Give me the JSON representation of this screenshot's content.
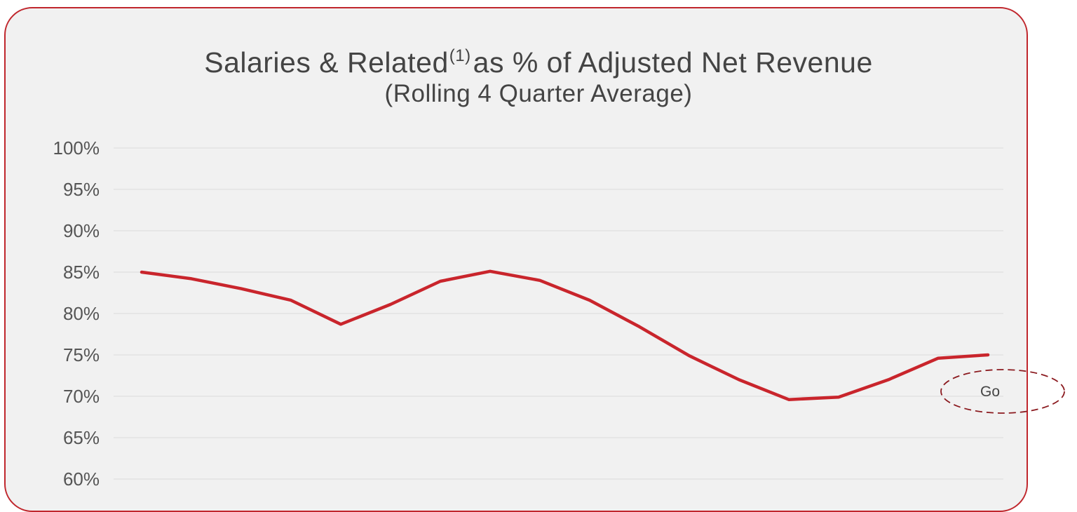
{
  "chart_data": {
    "type": "line",
    "title": "Salaries & Related",
    "title_footnote": "(1)",
    "title_suffix": "as % of Adjusted Net Revenue",
    "subtitle": "(Rolling 4 Quarter Average)",
    "ylabel": "",
    "xlabel": "",
    "ylim": [
      60,
      100
    ],
    "y_ticks": [
      "100%",
      "95%",
      "90%",
      "85%",
      "80%",
      "75%",
      "70%",
      "65%",
      "60%"
    ],
    "grid": true,
    "series": [
      {
        "values": [
          85.0,
          84.2,
          83.0,
          81.6,
          78.7,
          81.1,
          83.9,
          85.1,
          84.0,
          81.6,
          78.4,
          74.9,
          72.0,
          69.6,
          69.9,
          72.0,
          74.6,
          75.0
        ],
        "color": "#c9252c"
      }
    ],
    "annotation": {
      "text": "Go",
      "y_value": 70,
      "style": "dashed-ellipse",
      "color": "#8b1a1f"
    }
  },
  "colors": {
    "card_border": "#c0272d",
    "card_background": "#f1f1f1",
    "gridline": "#e2e2e2",
    "line": "#c9252c"
  }
}
